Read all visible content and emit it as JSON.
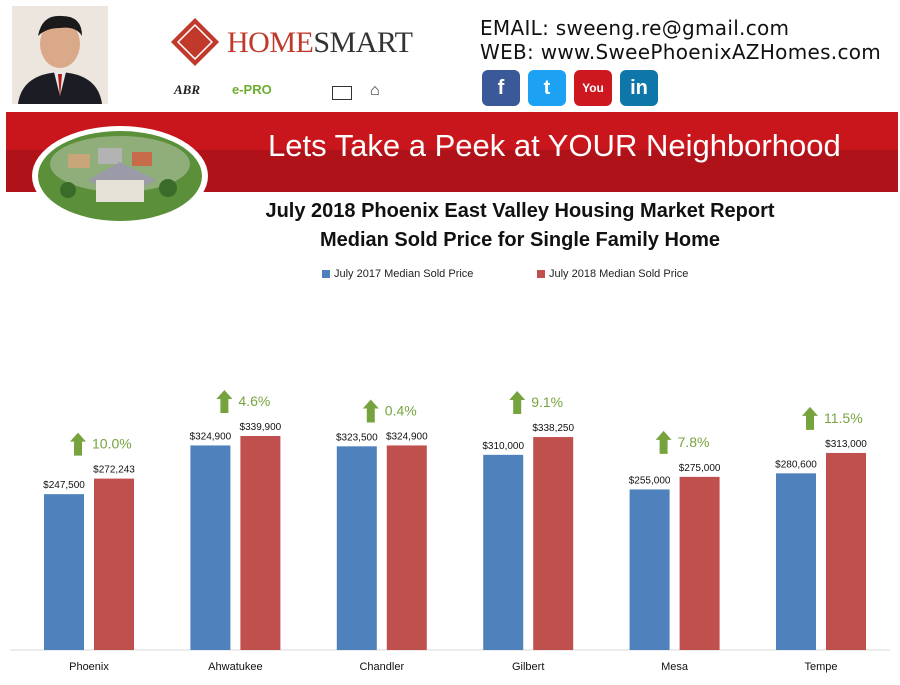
{
  "header": {
    "brand_left": "HOME",
    "brand_right": "SMART",
    "email": "EMAIL:  sweeng.re@gmail.com",
    "web": "WEB: www.SweePhoenixAZHomes.com",
    "badges": [
      "ABR",
      "e-PRO"
    ],
    "social": [
      {
        "icon": "facebook-icon",
        "glyph": "f",
        "color": "#3b5998"
      },
      {
        "icon": "twitter-icon",
        "glyph": "t",
        "color": "#1da1f2"
      },
      {
        "icon": "youtube-icon",
        "glyph": "You",
        "color": "#cc181e"
      },
      {
        "icon": "linkedin-icon",
        "glyph": "in",
        "color": "#0e76a8"
      }
    ]
  },
  "banner": {
    "text": "Lets Take a Peek at YOUR Neighborhood",
    "color": "#c9161c"
  },
  "chart_data": {
    "type": "bar",
    "title": "July 2018 Phoenix East Valley Housing Market Report",
    "subtitle": "Median Sold Price for Single Family Home",
    "categories": [
      "Phoenix",
      "Ahwatukee",
      "Chandler",
      "Gilbert",
      "Mesa",
      "Tempe"
    ],
    "series": [
      {
        "name": "July 2017 Median Sold Price",
        "color": "#4f81bd",
        "values": [
          247500,
          324900,
          323500,
          310000,
          255000,
          280600
        ],
        "labels": [
          "$247,500",
          "$324,900",
          "$323,500",
          "$310,000",
          "$255,000",
          "$280,600"
        ]
      },
      {
        "name": "July 2018 Median Sold Price",
        "color": "#c0504d",
        "values": [
          272243,
          339900,
          324900,
          338250,
          275000,
          313000
        ],
        "labels": [
          "$272,243",
          "$339,900",
          "$324,900",
          "$338,250",
          "$275,000",
          "$313,000"
        ]
      }
    ],
    "changes": [
      "10.0%",
      "4.6%",
      "0.4%",
      "9.1%",
      "7.8%",
      "11.5%"
    ],
    "change_color": "#77a33f",
    "ylim": [
      0,
      400000
    ],
    "grid": false,
    "legend_position": "top"
  }
}
